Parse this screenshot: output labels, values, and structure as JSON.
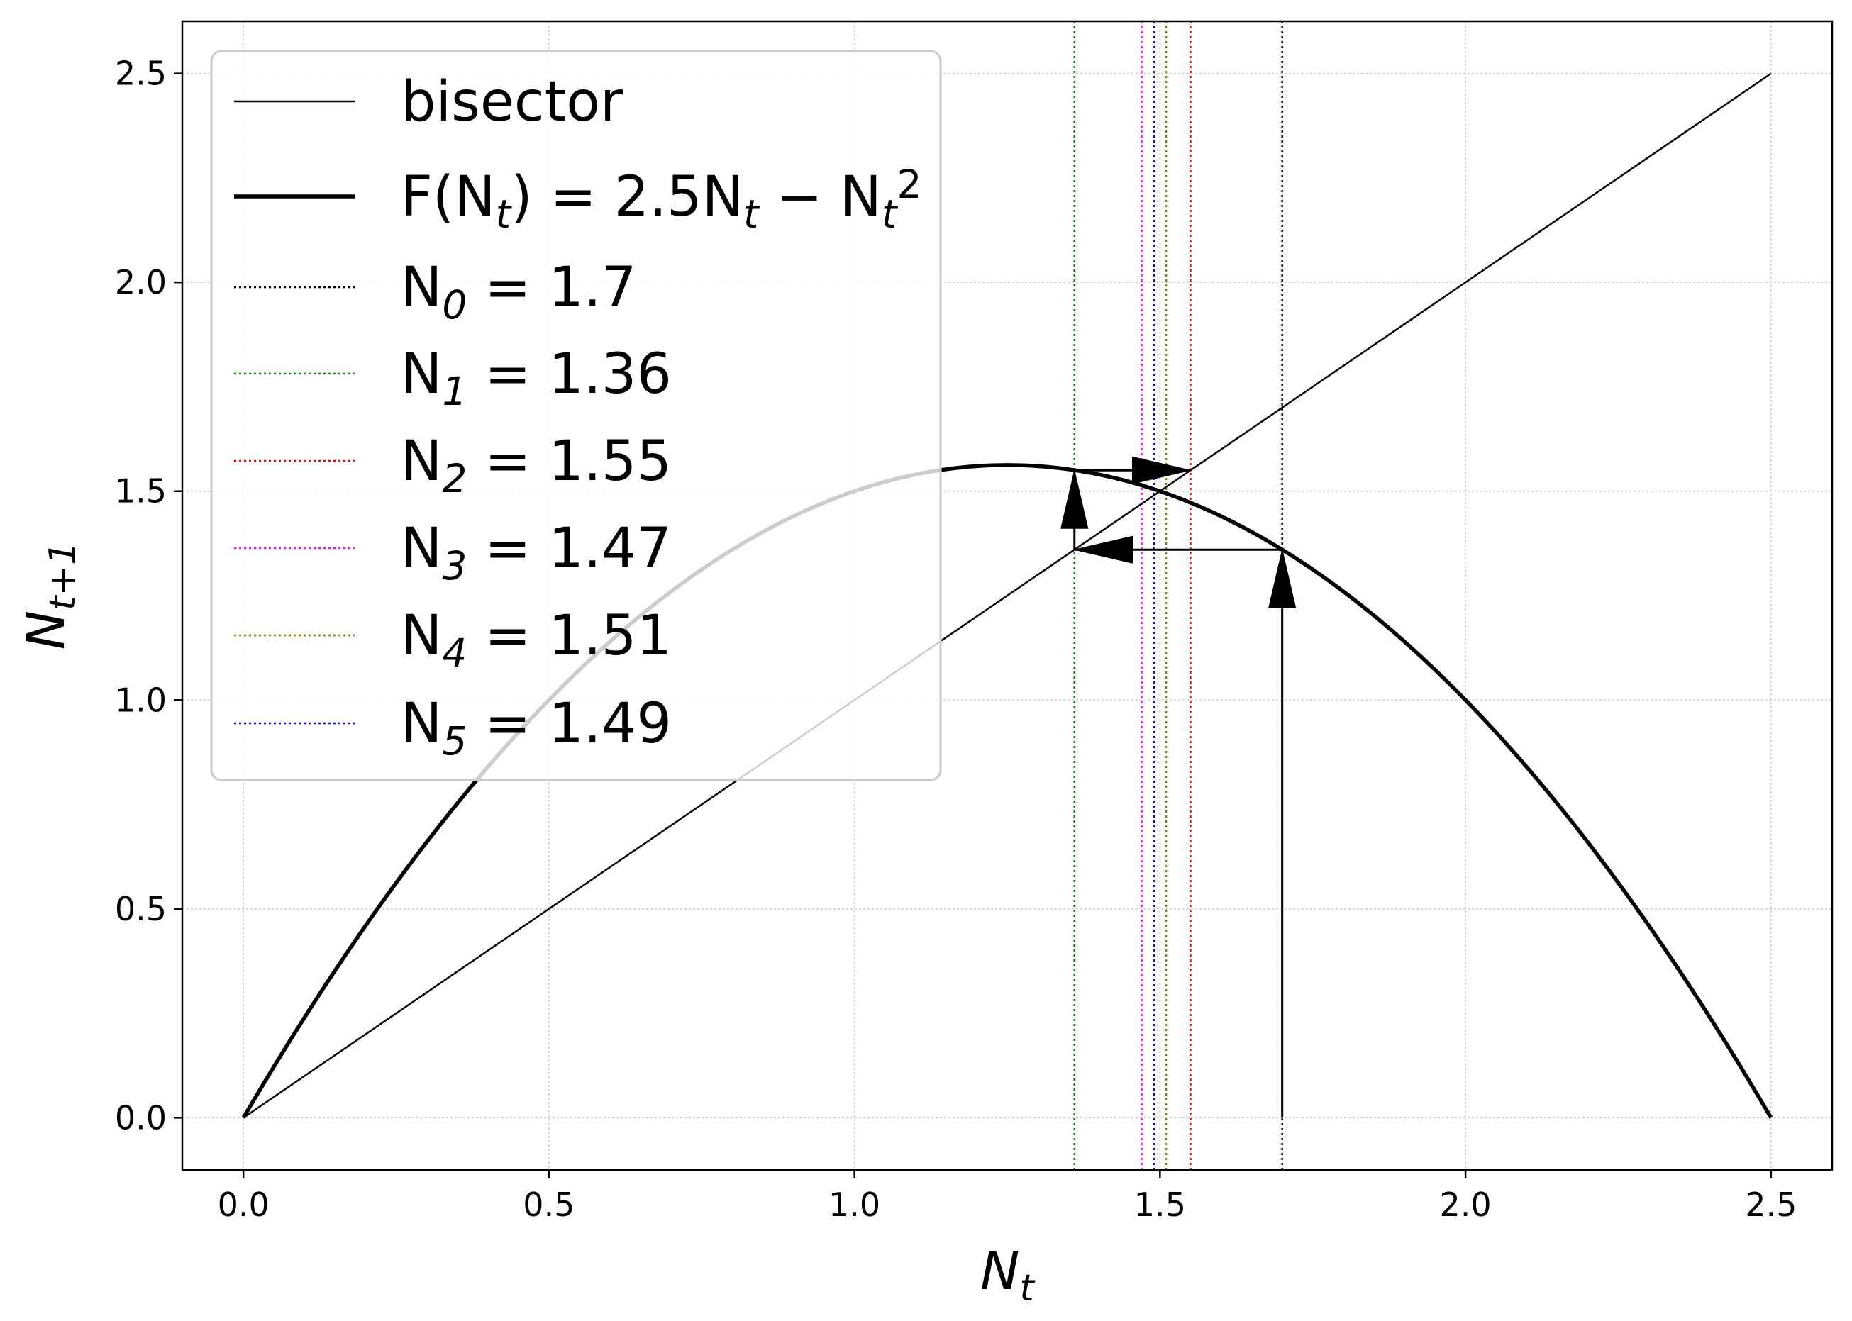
{
  "chart_data": {
    "type": "line",
    "xlabel": "N_t",
    "ylabel": "N_{t+1}",
    "xlim": [
      -0.1,
      2.6
    ],
    "ylim": [
      -0.125,
      2.625
    ],
    "xticks": [
      0.0,
      0.5,
      1.0,
      1.5,
      2.0,
      2.5
    ],
    "xtick_labels": [
      "0.0",
      "0.5",
      "1.0",
      "1.5",
      "2.0",
      "2.5"
    ],
    "yticks": [
      0.0,
      0.5,
      1.0,
      1.5,
      2.0,
      2.5
    ],
    "ytick_labels": [
      "0.0",
      "0.5",
      "1.0",
      "1.5",
      "2.0",
      "2.5"
    ],
    "grid": true,
    "legend_placement": "upper-left",
    "function": {
      "r": 2.5,
      "x_range": [
        0,
        2.5
      ]
    },
    "bisector": {
      "x": [
        0,
        2.5
      ],
      "y": [
        0,
        2.5
      ]
    },
    "iterates": [
      {
        "index": "0",
        "value": 1.7,
        "label_value": "1.7",
        "color": "#000000"
      },
      {
        "index": "1",
        "value": 1.36,
        "label_value": "1.36",
        "color": "#008000"
      },
      {
        "index": "2",
        "value": 1.55,
        "label_value": "1.55",
        "color": "#ff0000"
      },
      {
        "index": "3",
        "value": 1.47,
        "label_value": "1.47",
        "color": "#ff00ff"
      },
      {
        "index": "4",
        "value": 1.51,
        "label_value": "1.51",
        "color": "#808000"
      },
      {
        "index": "5",
        "value": 1.49,
        "label_value": "1.49",
        "color": "#0000ff"
      }
    ],
    "cobweb_arrows": [
      {
        "from": [
          1.7,
          0.0
        ],
        "to": [
          1.7,
          1.36
        ]
      },
      {
        "from": [
          1.7,
          1.36
        ],
        "to": [
          1.36,
          1.36
        ]
      },
      {
        "from": [
          1.36,
          1.36
        ],
        "to": [
          1.36,
          1.55
        ]
      },
      {
        "from": [
          1.36,
          1.55
        ],
        "to": [
          1.55,
          1.55
        ]
      }
    ],
    "legend": {
      "bisector": "bisector",
      "function_label": "F(N_t) = 2.5N_t − N_t^2"
    }
  }
}
